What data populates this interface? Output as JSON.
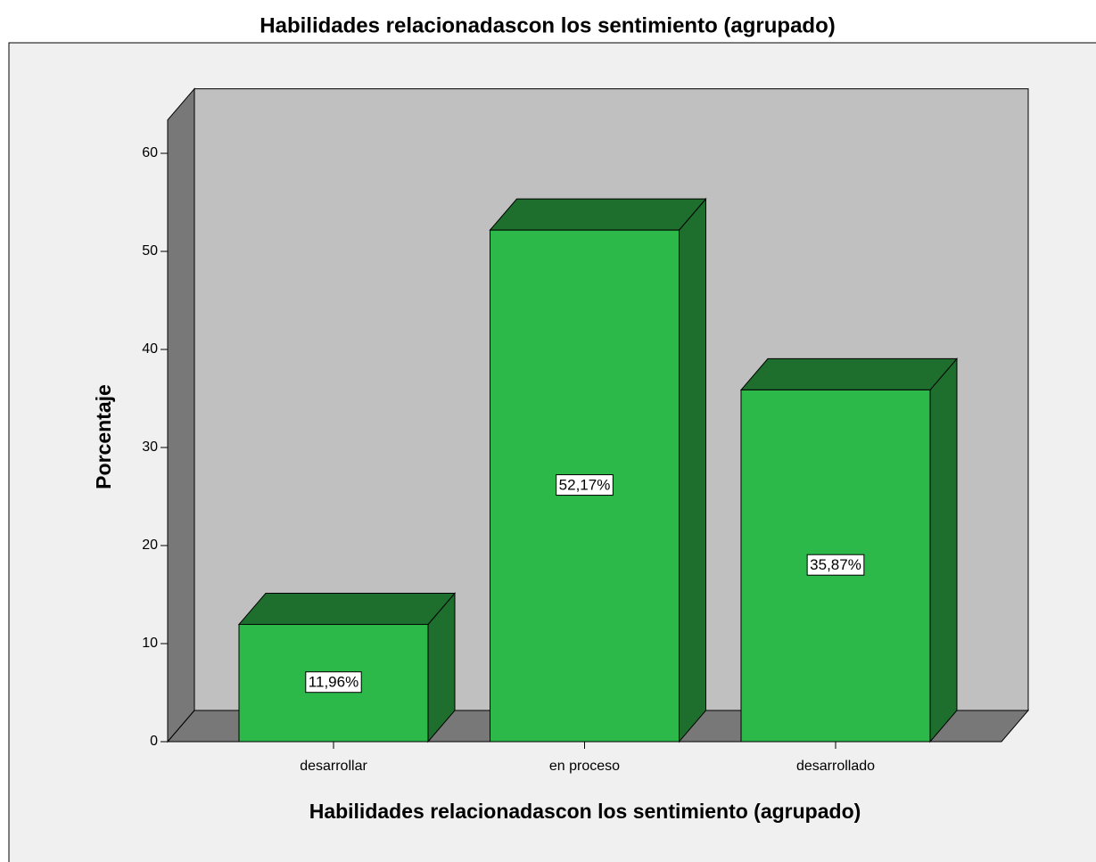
{
  "chart_data": {
    "type": "bar3d",
    "title": "Habilidades relacionadascon los sentimiento (agrupado)",
    "x_label": "Habilidades relacionadascon los sentimiento (agrupado)",
    "y_label": "Porcentaje",
    "categories": [
      "desarrollar",
      "en proceso",
      "desarrollado"
    ],
    "values": [
      11.96,
      52.17,
      35.87
    ],
    "value_labels": [
      "11,96%",
      "52,17%",
      "35,87%"
    ],
    "color": "#2db84a",
    "ylim": [
      0,
      63.4
    ],
    "yticks": [
      0,
      10,
      20,
      30,
      40,
      50,
      60
    ]
  }
}
